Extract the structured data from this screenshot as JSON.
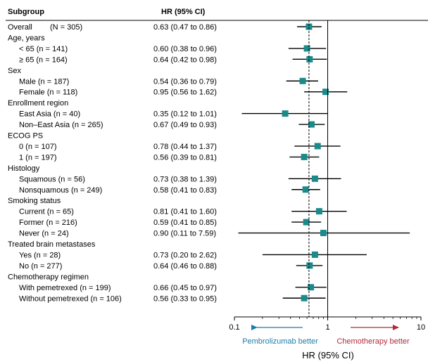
{
  "chart_data": {
    "type": "forest",
    "columns": {
      "subgroup": "Subgroup",
      "hr": "HR (95% CI)"
    },
    "xlabel": "HR (95% CI)",
    "xscale": "log",
    "xlim": [
      0.1,
      10
    ],
    "xticks": [
      {
        "value": 0.1,
        "label": "0.1"
      },
      {
        "value": 1,
        "label": "1"
      },
      {
        "value": 10,
        "label": "10"
      }
    ],
    "reference_line": 1,
    "overall_line": 0.63,
    "favor_left": "Pembrolizumab better",
    "favor_right": "Chemotherapy better",
    "colors": {
      "marker": "#1a8a8a",
      "left_arrow": "#1a7fa8",
      "right_arrow": "#b5283b",
      "text": "#000000"
    },
    "rows": [
      {
        "label": "Overall",
        "n": "(N = 305)",
        "hr": 0.63,
        "lo": 0.47,
        "hi": 0.86,
        "ci_text": "0.63 (0.47 to 0.86)"
      },
      {
        "label": "Age, years",
        "header": true
      },
      {
        "label": "< 65 (n = 141)",
        "indent": true,
        "hr": 0.6,
        "lo": 0.38,
        "hi": 0.96,
        "ci_text": "0.60 (0.38 to 0.96)"
      },
      {
        "label": "≥ 65 (n = 164)",
        "indent": true,
        "hr": 0.64,
        "lo": 0.42,
        "hi": 0.98,
        "ci_text": "0.64 (0.42 to 0.98)"
      },
      {
        "label": "Sex",
        "header": true
      },
      {
        "label": "Male (n = 187)",
        "indent": true,
        "hr": 0.54,
        "lo": 0.36,
        "hi": 0.79,
        "ci_text": "0.54 (0.36 to 0.79)"
      },
      {
        "label": "Female (n = 118)",
        "indent": true,
        "hr": 0.95,
        "lo": 0.56,
        "hi": 1.62,
        "ci_text": "0.95 (0.56 to 1.62)"
      },
      {
        "label": "Enrollment region",
        "header": true
      },
      {
        "label": "East Asia (n = 40)",
        "indent": true,
        "hr": 0.35,
        "lo": 0.12,
        "hi": 1.01,
        "ci_text": "0.35 (0.12 to 1.01)"
      },
      {
        "label": "Non–East Asia (n = 265)",
        "indent": true,
        "hr": 0.67,
        "lo": 0.49,
        "hi": 0.93,
        "ci_text": "0.67 (0.49 to 0.93)"
      },
      {
        "label": "ECOG PS",
        "header": true
      },
      {
        "label": "0 (n = 107)",
        "indent": true,
        "hr": 0.78,
        "lo": 0.44,
        "hi": 1.37,
        "ci_text": "0.78 (0.44 to 1.37)"
      },
      {
        "label": "1 (n = 197)",
        "indent": true,
        "hr": 0.56,
        "lo": 0.39,
        "hi": 0.81,
        "ci_text": "0.56 (0.39 to 0.81)"
      },
      {
        "label": "Histology",
        "header": true
      },
      {
        "label": "Squamous (n = 56)",
        "indent": true,
        "hr": 0.73,
        "lo": 0.38,
        "hi": 1.39,
        "ci_text": "0.73 (0.38 to 1.39)"
      },
      {
        "label": "Nonsquamous (n = 249)",
        "indent": true,
        "hr": 0.58,
        "lo": 0.41,
        "hi": 0.83,
        "ci_text": "0.58 (0.41 to 0.83)"
      },
      {
        "label": "Smoking status",
        "header": true
      },
      {
        "label": "Current (n = 65)",
        "indent": true,
        "hr": 0.81,
        "lo": 0.41,
        "hi": 1.6,
        "ci_text": "0.81 (0.41 to 1.60)"
      },
      {
        "label": "Former (n = 216)",
        "indent": true,
        "hr": 0.59,
        "lo": 0.41,
        "hi": 0.85,
        "ci_text": "0.59 (0.41 to 0.85)"
      },
      {
        "label": "Never (n = 24)",
        "indent": true,
        "hr": 0.9,
        "lo": 0.11,
        "hi": 7.59,
        "ci_text": "0.90 (0.11 to 7.59)"
      },
      {
        "label": "Treated brain metastases",
        "header": true
      },
      {
        "label": "Yes (n = 28)",
        "indent": true,
        "hr": 0.73,
        "lo": 0.2,
        "hi": 2.62,
        "ci_text": "0.73 (0.20 to 2.62)"
      },
      {
        "label": "No (n = 277)",
        "indent": true,
        "hr": 0.64,
        "lo": 0.46,
        "hi": 0.88,
        "ci_text": "0.64 (0.46 to 0.88)"
      },
      {
        "label": "Chemotherapy regimen",
        "header": true
      },
      {
        "label": "With pemetrexed (n = 199)",
        "indent": true,
        "hr": 0.66,
        "lo": 0.45,
        "hi": 0.97,
        "ci_text": "0.66 (0.45 to 0.97)"
      },
      {
        "label": "Without pemetrexed (n = 106)",
        "indent": true,
        "hr": 0.56,
        "lo": 0.33,
        "hi": 0.95,
        "ci_text": "0.56 (0.33 to 0.95)"
      }
    ]
  }
}
